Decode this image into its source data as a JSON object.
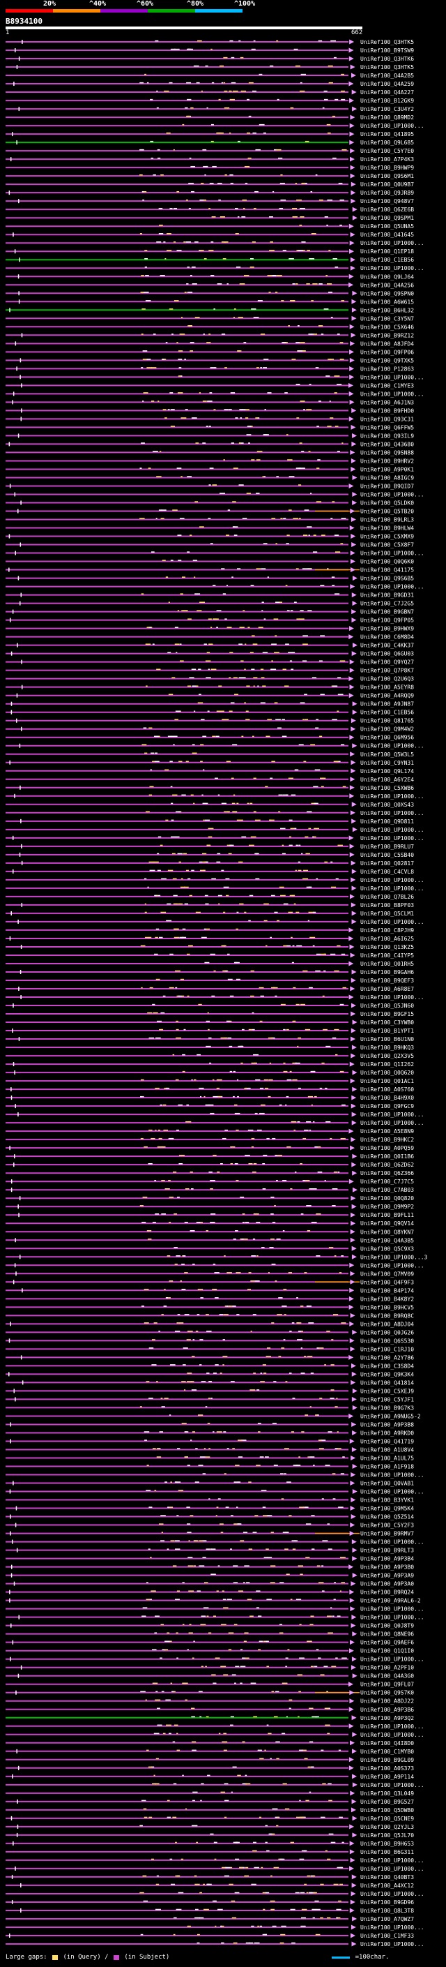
{
  "query": {
    "title": "B8934100",
    "start": "1",
    "end": "662"
  },
  "legend": {
    "ticks": [
      "20%",
      "^40%",
      "^60%",
      "^80%",
      "^100%"
    ],
    "colors": [
      "#ff0000",
      "#ff8800",
      "#9900cc",
      "#00aa00",
      "#00bbff"
    ]
  },
  "hit_colors": {
    "alignment": "#cc44cc",
    "gap": "#ffffff",
    "arrow": "#ee99ff",
    "green": "#00bb00",
    "orange": "#ff9900",
    "yellow": "#ffdd66"
  },
  "footer": {
    "large_gaps_label": "Large gaps:",
    "in_query": "(in Query)",
    "in_subject": "(in Subject)",
    "scale_label": "=100char."
  },
  "hits": [
    "UniRef100_Q3HTK5",
    "UniRef100_B9TSW9",
    "UniRef100_Q3HTK6",
    "UniRef100_Q3HTK5",
    "UniRef100_Q4A2B5",
    "UniRef100_Q4A259",
    "UniRef100_Q4A227",
    "UniRef100_B12GK9",
    "UniRef100_C3U4Y2",
    "UniRef100_Q89MD2",
    "UniRef100_UP1000...",
    "UniRef100_Q41895",
    "UniRef100_Q9L685",
    "UniRef100_C5Y7E0",
    "UniRef100_A7P4K3",
    "UniRef100_B9HWP9",
    "UniRef100_Q9S6M1",
    "UniRef100_Q0U9B7",
    "UniRef100_Q9JR89",
    "UniRef100_Q948V7",
    "UniRef100_Q6ZE6B",
    "UniRef100_Q9SPM1",
    "UniRef100_Q5UNA5",
    "UniRef100_Q41645",
    "UniRef100_UP1000...",
    "UniRef100_Q1EP18",
    "UniRef100_C1EB56",
    "UniRef100_UP1000...",
    "UniRef100_Q9LJ64",
    "UniRef100_Q4A256",
    "UniRef100_Q9SPN0",
    "UniRef100_A6W615",
    "UniRef100_B6HL32",
    "UniRef100_C3Y5N7",
    "UniRef100_C5X646",
    "UniRef100_B9RZ12",
    "UniRef100_A8JFD4",
    "UniRef100_Q9FP06",
    "UniRef100_Q9TXK5",
    "UniRef100_P12863",
    "UniRef100_UP1000...",
    "UniRef100_C1MYE3",
    "UniRef100_UP1000...",
    "UniRef100_A6J1N3",
    "UniRef100_B9FHD0",
    "UniRef100_Q93C31",
    "UniRef100_Q6FFW5",
    "UniRef100_Q93IL9",
    "UniRef100_Q43680",
    "UniRef100_Q9SN88",
    "UniRef100_B9HRV2",
    "UniRef100_A9P0K1",
    "UniRef100_A8IGC9",
    "UniRef100_B9QID7",
    "UniRef100_UP1000...",
    "UniRef100_Q5LDK0",
    "UniRef100_Q5TB20",
    "UniRef100_B9LRL3",
    "UniRef100_B9HLW4",
    "UniRef100_C5XMX9",
    "UniRef100_C5X8F7",
    "UniRef100_UP1000...",
    "UniRef100_Q0Q6K0",
    "UniRef100_Q41175",
    "UniRef100_Q9S6B5",
    "UniRef100_UP1000...",
    "UniRef100_B9GD31",
    "UniRef100_C7J2G5",
    "UniRef100_B9GBN7",
    "UniRef100_Q9FP05",
    "UniRef100_B9HWX9",
    "UniRef100_C6M8D4",
    "UniRef100_C4KK37",
    "UniRef100_Q6GU03",
    "UniRef100_Q9YQ27",
    "UniRef100_Q7P8K7",
    "UniRef100_Q2U6Q3",
    "UniRef100_A5EYR8",
    "UniRef100_A4RQQ9",
    "UniRef100_A9JN87",
    "UniRef100_C1EB56",
    "UniRef100_Q81765",
    "UniRef100_Q9M4W2",
    "UniRef100_Q6M956",
    "UniRef100_UP1000...",
    "UniRef100_Q5W3L5",
    "UniRef100_C9YN31",
    "UniRef100_Q9L174",
    "UniRef100_A6Y2E4",
    "UniRef100_C5XWB6",
    "UniRef100_UP1000...",
    "UniRef100_Q0XS43",
    "UniRef100_UP1000...",
    "UniRef100_Q9D811",
    "UniRef100_UP1000...",
    "UniRef100_UP1000...",
    "UniRef100_B9RLU7",
    "UniRef100_C5SB40",
    "UniRef100_Q02817",
    "UniRef100_C4CVL8",
    "UniRef100_UP1000...",
    "UniRef100_UP1000...",
    "UniRef100_Q7BL26",
    "UniRef100_B8PF03",
    "UniRef100_Q5CLM1",
    "UniRef100_UP1000...",
    "UniRef100_C8PJH9",
    "UniRef100_A6I625",
    "UniRef100_Q13KZ5",
    "UniRef100_C4IYP5",
    "UniRef100_Q01RH5",
    "UniRef100_B9GAH6",
    "UniRef100_B9QEF3",
    "UniRef100_A6R8E7",
    "UniRef100_UP1000...",
    "UniRef100_Q5JN60",
    "UniRef100_B9GF15",
    "UniRef100_C3YWB0",
    "UniRef100_B1YPT1",
    "UniRef100_B6U1N0",
    "UniRef100_B9HKQ3",
    "UniRef100_Q2X3V5",
    "UniRef100_Q1I262",
    "UniRef100_Q0Q620",
    "UniRef100_Q01AC1",
    "UniRef100_A0S760",
    "UniRef100_B4H9X0",
    "UniRef100_Q9FGC9",
    "UniRef100_UP1000...",
    "UniRef100_UP1000...",
    "UniRef100_A5E8N9",
    "UniRef100_B9HKC2",
    "UniRef100_A0PQ59",
    "UniRef100_Q0I1B6",
    "UniRef100_Q6ZD62",
    "UniRef100_Q6Z366",
    "UniRef100_C7J7C5",
    "UniRef100_C7AB03",
    "UniRef100_Q0Q820",
    "UniRef100_Q9M9P2",
    "UniRef100_B9FL11",
    "UniRef100_Q9QV14",
    "UniRef100_Q8YKN7",
    "UniRef100_Q4A3B5",
    "UniRef100_Q5C9X3",
    "UniRef100_UP1000...3",
    "UniRef100_UP1000...",
    "UniRef100_Q7MV09",
    "UniRef100_Q4F9F3",
    "UniRef100_B4P174",
    "UniRef100_B4K8Y2",
    "UniRef100_B9HCV5",
    "UniRef100_B9RQ8C",
    "UniRef100_A8DJ04",
    "UniRef100_Q0JG26",
    "UniRef100_Q6S530",
    "UniRef100_C1RJ10",
    "UniRef100_A2Y786",
    "UniRef100_C3S8D4",
    "UniRef100_Q9K3K4",
    "UniRef100_Q41814",
    "UniRef100_C5XEJ9",
    "UniRef100_C5YJF1",
    "UniRef100_B9G7K3",
    "UniRef100_A9NUG5-2",
    "UniRef100_A9P3B8",
    "UniRef100_A9RKD0",
    "UniRef100_Q41719",
    "UniRef100_A1U8V4",
    "UniRef100_A1UL75",
    "UniRef100_A1F918",
    "UniRef100_UP1000...",
    "UniRef100_Q0VAB1",
    "UniRef100_UP1000...",
    "UniRef100_B3YVK1",
    "UniRef100_Q9M5K4",
    "UniRef100_Q5Z514",
    "UniRef100_C5Y2F3",
    "UniRef100_B9RMV7",
    "UniRef100_UP1000...",
    "UniRef100_B9RLT3",
    "UniRef100_A9P3B4",
    "UniRef100_A9P3B0",
    "UniRef100_A9P3A9",
    "UniRef100_A9P3A0",
    "UniRef100_B9RQ24",
    "UniRef100_A9RAL6-2",
    "UniRef100_UP1000...",
    "UniRef100_UP1000...",
    "UniRef100_Q0J8T9",
    "UniRef100_Q8NE96",
    "UniRef100_Q9AEF6",
    "UniRef100_Q1Q1I0",
    "UniRef100_UP1000...",
    "UniRef100_A2PF10",
    "UniRef100_Q4A3G0",
    "UniRef100_Q9FL07",
    "UniRef100_Q9S7K0",
    "UniRef100_A8DJ22",
    "UniRef100_A9P3B6",
    "UniRef100_A9P3Q2",
    "UniRef100_UP1000...",
    "UniRef100_UP1000...",
    "UniRef100_Q4I8D0",
    "UniRef100_C1MYB0",
    "UniRef100_B9GL09",
    "UniRef100_A0S373",
    "UniRef100_A9P114",
    "UniRef100_UP1000...",
    "UniRef100_Q3L049",
    "UniRef100_B9G527",
    "UniRef100_Q5DWB0",
    "UniRef100_Q5CNE9",
    "UniRef100_Q2YJL3",
    "UniRef100_Q5JL70",
    "UniRef100_B9H653",
    "UniRef100_B6G311",
    "UniRef100_UP1000...",
    "UniRef100_UP1000...",
    "UniRef100_Q40BT3",
    "UniRef100_A4XC12",
    "UniRef100_UP1000...",
    "UniRef100_B9GD96",
    "UniRef100_Q8L3T8",
    "UniRef100_A7QWZ7",
    "UniRef100_UP1000...",
    "UniRef100_C1MF33",
    "UniRef100_UP1000..."
  ]
}
